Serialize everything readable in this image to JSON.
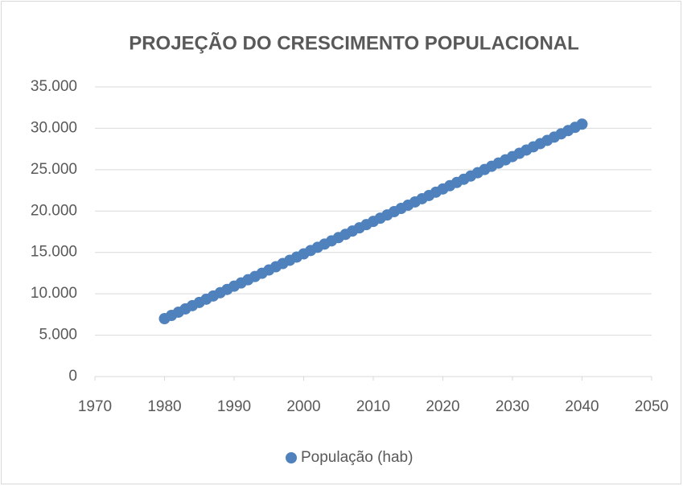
{
  "chart_data": {
    "type": "scatter",
    "title": "PROJEÇÃO DO CRESCIMENTO POPULACIONAL",
    "series": [
      {
        "name": "População (hab)",
        "color": "#4f81bd",
        "x": [
          1980,
          1981,
          1982,
          1983,
          1984,
          1985,
          1986,
          1987,
          1988,
          1989,
          1990,
          1991,
          1992,
          1993,
          1994,
          1995,
          1996,
          1997,
          1998,
          1999,
          2000,
          2001,
          2002,
          2003,
          2004,
          2005,
          2006,
          2007,
          2008,
          2009,
          2010,
          2011,
          2012,
          2013,
          2014,
          2015,
          2016,
          2017,
          2018,
          2019,
          2020,
          2021,
          2022,
          2023,
          2024,
          2025,
          2026,
          2027,
          2028,
          2029,
          2030,
          2031,
          2032,
          2033,
          2034,
          2035,
          2036,
          2037,
          2038,
          2039,
          2040
        ],
        "values": [
          7000,
          7390,
          7780,
          8180,
          8570,
          8960,
          9350,
          9740,
          10130,
          10530,
          10920,
          11310,
          11700,
          12090,
          12480,
          12880,
          13270,
          13660,
          14050,
          14440,
          14830,
          15230,
          15620,
          16010,
          16400,
          16790,
          17180,
          17580,
          17970,
          18360,
          18750,
          19140,
          19530,
          19930,
          20320,
          20710,
          21100,
          21490,
          21880,
          22280,
          22670,
          23060,
          23450,
          23840,
          24230,
          24630,
          25020,
          25410,
          25800,
          26190,
          26580,
          26980,
          27370,
          27760,
          28150,
          28540,
          28930,
          29330,
          29720,
          30110,
          30500
        ]
      }
    ],
    "xlim": [
      1970,
      2050
    ],
    "xticks": [
      1970,
      1980,
      1990,
      2000,
      2010,
      2020,
      2030,
      2040,
      2050
    ],
    "ylim": [
      0,
      35000
    ],
    "yticks": [
      0,
      {
        "value": 5000,
        "label": "5.000"
      },
      {
        "value": 10000,
        "label": "10.000"
      },
      {
        "value": 15000,
        "label": "15.000"
      },
      {
        "value": 20000,
        "label": "20.000"
      },
      {
        "value": 25000,
        "label": "25.000"
      },
      {
        "value": 30000,
        "label": "30.000"
      },
      {
        "value": 35000,
        "label": "35.000"
      }
    ],
    "grid": true,
    "legend": "bottom"
  }
}
